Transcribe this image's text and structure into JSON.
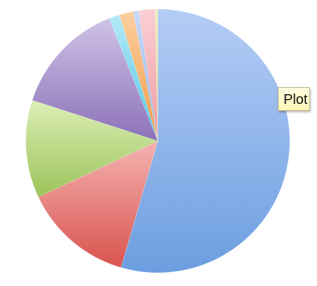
{
  "tooltip": {
    "text": "Plot A"
  },
  "chart_data": {
    "type": "pie",
    "title": "",
    "start_angle_deg": 0,
    "direction": "clockwise",
    "legend": "none",
    "slices": [
      {
        "value": 54.5,
        "color": "#6d9ee0",
        "light": "#b4cdf5"
      },
      {
        "value": 13.5,
        "color": "#d9534f",
        "light": "#f4b3b0"
      },
      {
        "value": 12.0,
        "color": "#9cc35a",
        "light": "#dcefb6"
      },
      {
        "value": 14.0,
        "color": "#8c72b8",
        "light": "#cfc2e6"
      },
      {
        "value": 1.3,
        "color": "#4fc6e6",
        "light": "#b3e9f6"
      },
      {
        "value": 1.7,
        "color": "#f29a45",
        "light": "#fbcf9f"
      },
      {
        "value": 0.7,
        "color": "#8fb1ea",
        "light": "#c9d9f6"
      },
      {
        "value": 2.0,
        "color": "#ee9aa1",
        "light": "#f9cfd3"
      },
      {
        "value": 0.3,
        "color": "#d6e07a",
        "light": "#eef2b8"
      }
    ]
  }
}
